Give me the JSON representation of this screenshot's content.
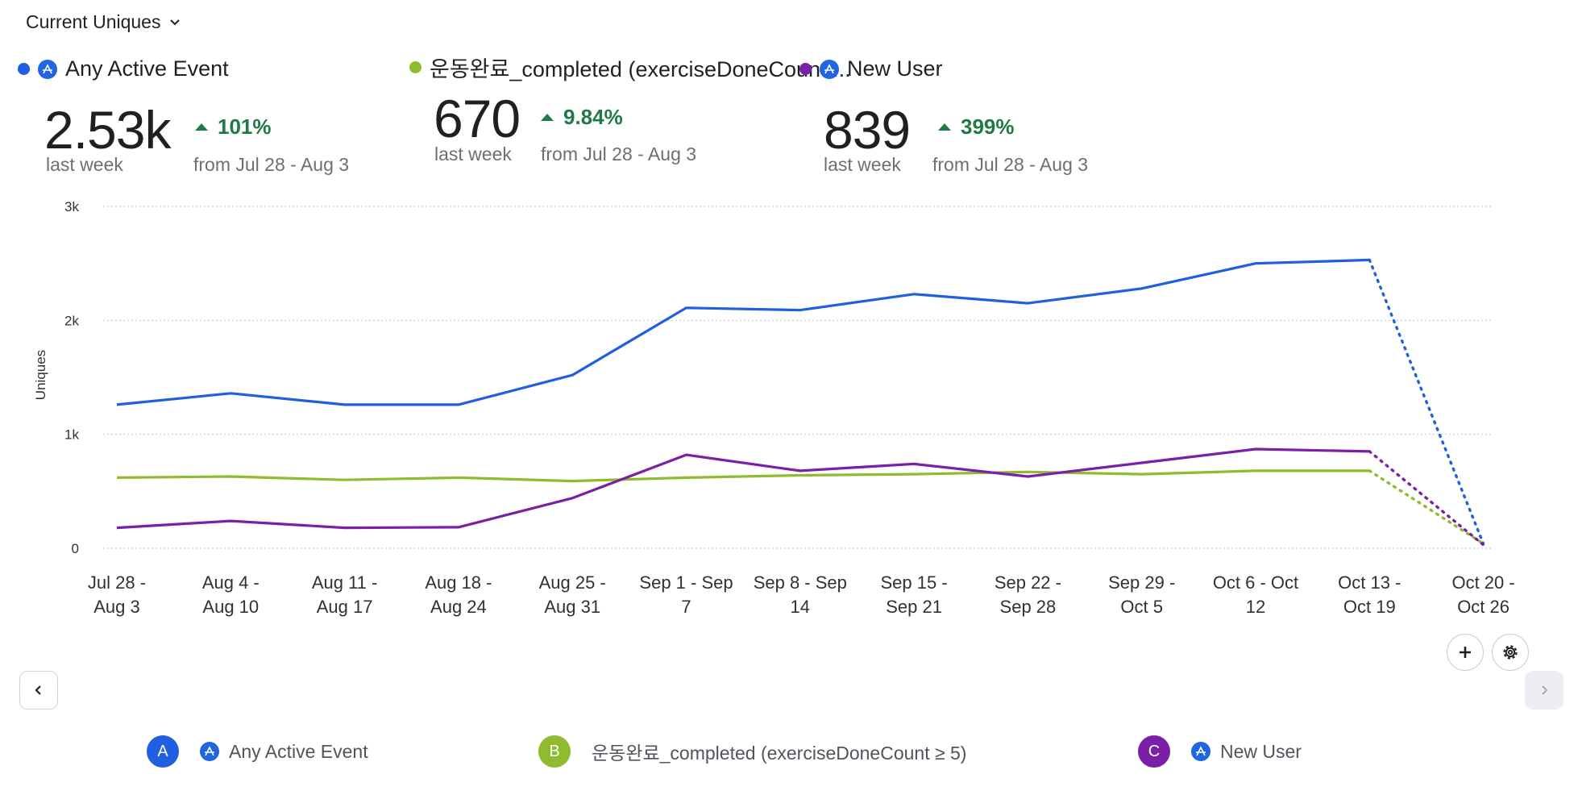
{
  "header": {
    "metric_label": "Current Uniques"
  },
  "colors": {
    "a": "#1f5fe0",
    "b": "#8fbc2f",
    "c": "#7a1fa8",
    "positive": "#1f7a45"
  },
  "cards": [
    {
      "name": "Any Active Event",
      "value": "2.53k",
      "period": "last week",
      "change": "101%",
      "from": "from Jul 28 - Aug 3"
    },
    {
      "name": "운동완료_completed (exerciseDoneCount ...",
      "value": "670",
      "period": "last week",
      "change": "9.84%",
      "from": "from Jul 28 - Aug 3"
    },
    {
      "name": "New User",
      "value": "839",
      "period": "last week",
      "change": "399%",
      "from": "from Jul 28 - Aug 3"
    }
  ],
  "chart_data": {
    "type": "line",
    "ylabel": "Uniques",
    "ylim": [
      0,
      3000
    ],
    "yticks": [
      "3k",
      "2k",
      "1k",
      "0"
    ],
    "categories": [
      [
        "Jul 28 -",
        "Aug 3"
      ],
      [
        "Aug 4 -",
        "Aug 10"
      ],
      [
        "Aug 11 -",
        "Aug 17"
      ],
      [
        "Aug 18 -",
        "Aug 24"
      ],
      [
        "Aug 25 -",
        "Aug 31"
      ],
      [
        "Sep 1 - Sep",
        "7"
      ],
      [
        "Sep 8 - Sep",
        "14"
      ],
      [
        "Sep 15 -",
        "Sep 21"
      ],
      [
        "Sep 22 -",
        "Sep 28"
      ],
      [
        "Sep 29 -",
        "Oct 5"
      ],
      [
        "Oct 6 - Oct",
        "12"
      ],
      [
        "Oct 13 -",
        "Oct 19"
      ],
      [
        "Oct 20 -",
        "Oct 26"
      ]
    ],
    "series": [
      {
        "name": "Any Active Event",
        "color": "#1f5fe0",
        "values": [
          1260,
          1360,
          1260,
          1260,
          1520,
          2110,
          2090,
          2230,
          2150,
          2280,
          2500,
          2530,
          40
        ]
      },
      {
        "name": "운동완료_completed (exerciseDoneCount ≥ 5)",
        "color": "#8fbc2f",
        "values": [
          620,
          630,
          600,
          620,
          590,
          620,
          640,
          650,
          670,
          650,
          680,
          680,
          40
        ]
      },
      {
        "name": "New User",
        "color": "#7a1fa8",
        "values": [
          180,
          240,
          180,
          185,
          440,
          820,
          680,
          740,
          630,
          750,
          870,
          850,
          30
        ]
      }
    ],
    "incomplete_last_period": true
  },
  "controls": {
    "add_icon": "plus-icon",
    "settings_icon": "gear-icon",
    "prev_icon": "chevron-left-icon",
    "next_icon": "chevron-right-icon"
  },
  "legend": [
    {
      "letter": "A",
      "label": "Any Active Event",
      "color": "#1f5fe0"
    },
    {
      "letter": "B",
      "label": "운동완료_completed (exerciseDoneCount ≥ 5)",
      "color": "#8fbc2f"
    },
    {
      "letter": "C",
      "label": "New User",
      "color": "#7a1fa8"
    }
  ]
}
